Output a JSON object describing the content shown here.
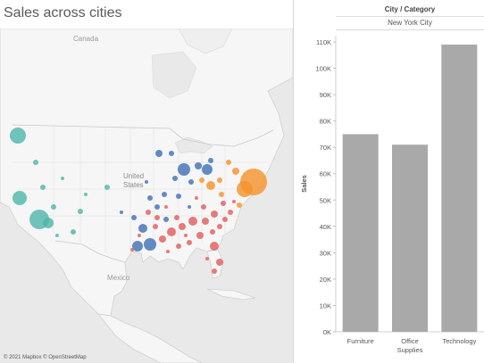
{
  "title": "Sales across cities",
  "map": {
    "labels": {
      "canada": "Canada",
      "united_states": "United\nStates",
      "mexico": "Mexico"
    },
    "credit": "© 2021 Mapbox © OpenStreetMap",
    "colors": {
      "west": "#4db6a9",
      "central": "#3f6fb5",
      "east": "#f5922b",
      "south": "#e05c5c"
    }
  },
  "chart_data": {
    "type": "bar",
    "header_title": "City / Category",
    "header_value": "New York City",
    "ylabel": "Sales",
    "ylim": [
      0,
      110000
    ],
    "yticks": [
      {
        "value": 0,
        "label": "0K"
      },
      {
        "value": 10000,
        "label": "10K"
      },
      {
        "value": 20000,
        "label": "20K"
      },
      {
        "value": 30000,
        "label": "30K"
      },
      {
        "value": 40000,
        "label": "40K"
      },
      {
        "value": 50000,
        "label": "50K"
      },
      {
        "value": 60000,
        "label": "60K"
      },
      {
        "value": 70000,
        "label": "70K"
      },
      {
        "value": 80000,
        "label": "80K"
      },
      {
        "value": 90000,
        "label": "90K"
      },
      {
        "value": 100000,
        "label": "100K"
      },
      {
        "value": 110000,
        "label": "110K"
      }
    ],
    "categories": [
      "Furniture",
      "Office Supplies",
      "Technology"
    ],
    "values": [
      75000,
      71000,
      109000
    ],
    "bar_color": "#a9a9a9"
  }
}
